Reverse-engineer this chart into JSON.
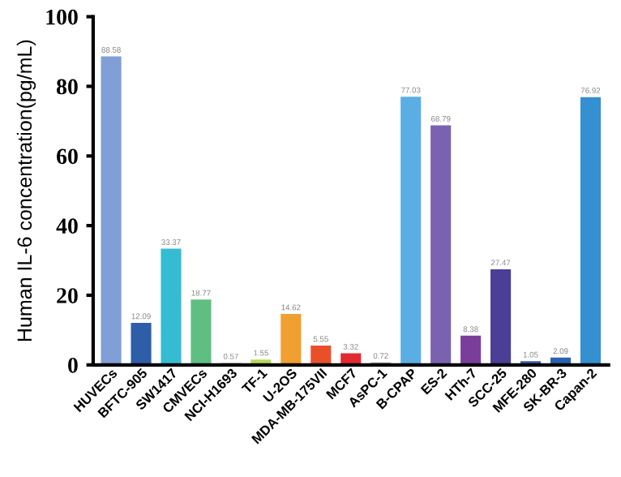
{
  "chart_data": {
    "type": "bar",
    "ylabel": "Human IL-6 concentration(pg/mL)",
    "categories": [
      "HUVECs",
      "BFTC-905",
      "SW1417",
      "CMVECs",
      "NCI-H1693",
      "TF-1",
      "U-2OS",
      "MDA-MB-175VII",
      "MCF7",
      "AsPC-1",
      "B-CPAP",
      "ES-2",
      "HTh-7",
      "SCC-25",
      "MFE-280",
      "SK-BR-3",
      "Capan-2"
    ],
    "values": [
      88.58,
      12.09,
      33.37,
      18.77,
      0.57,
      1.55,
      14.62,
      5.55,
      3.32,
      0.72,
      77.03,
      68.79,
      8.38,
      27.47,
      1.05,
      2.09,
      76.92
    ],
    "value_labels": [
      "88.58",
      "12.09",
      "33.37",
      "18.77",
      "0.57",
      "1.55",
      "14.62",
      "5.55",
      "3.32",
      "0.72",
      "77.03",
      "68.79",
      "8.38",
      "27.47",
      "1.05",
      "2.09",
      "76.92"
    ],
    "colors": [
      "#7f9fd6",
      "#2f5ea8",
      "#35bcd3",
      "#5fbf82",
      "#c8c8c8",
      "#b8d85a",
      "#f0a030",
      "#e8502a",
      "#e02a30",
      "#a0a0a0",
      "#5aaee3",
      "#7b62b0",
      "#7a3e9a",
      "#4a3e96",
      "#3a5aa8",
      "#2a62b0",
      "#3490d0"
    ],
    "ylim": [
      0,
      100
    ],
    "yticks": [
      0,
      20,
      40,
      60,
      80,
      100
    ]
  }
}
